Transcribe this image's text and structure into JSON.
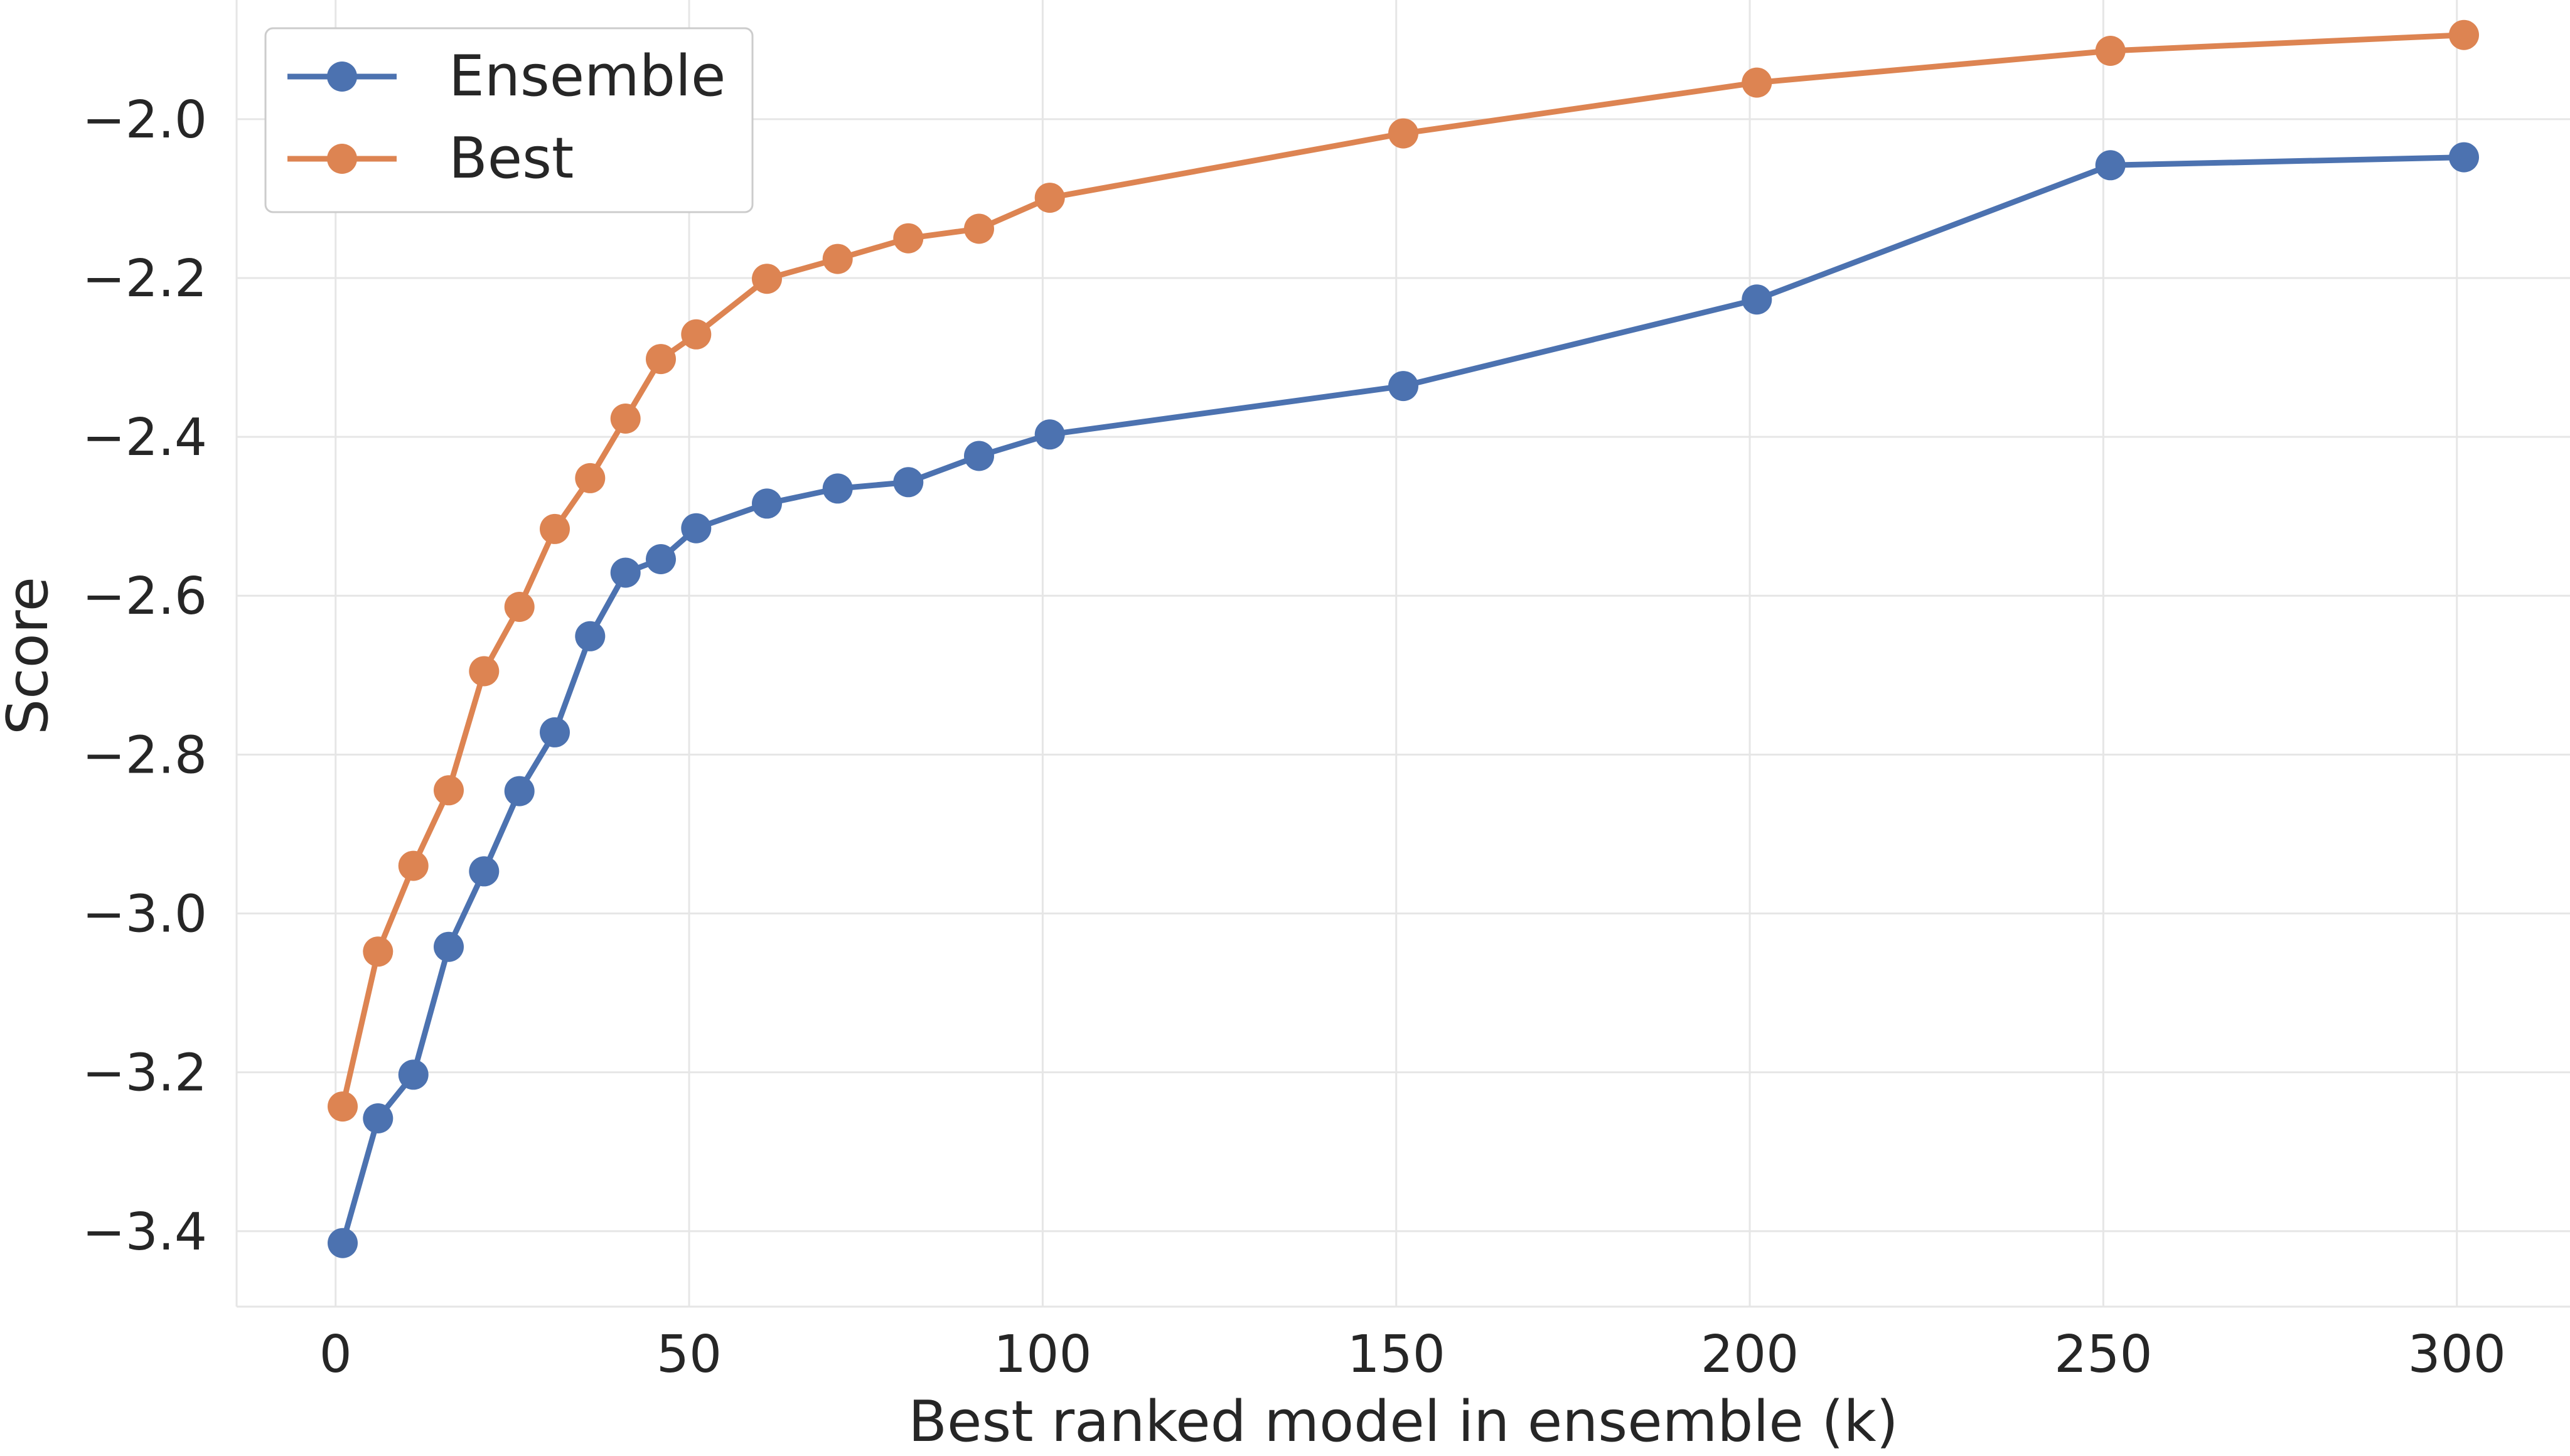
{
  "chart_data": {
    "type": "line",
    "title": "",
    "xlabel": "Best ranked model in ensemble (k)",
    "ylabel": "Score",
    "xlim": [
      -14,
      316
    ],
    "ylim": [
      -3.495,
      -1.85
    ],
    "x_ticks": [
      0,
      50,
      100,
      150,
      200,
      250,
      300
    ],
    "x_tick_labels": [
      "0",
      "50",
      "100",
      "150",
      "200",
      "250",
      "300"
    ],
    "y_ticks": [
      -3.4,
      -3.2,
      -3.0,
      -2.8,
      -2.6,
      -2.4,
      -2.2,
      -2.0
    ],
    "y_tick_labels": [
      "−3.4",
      "−3.2",
      "−3.0",
      "−2.8",
      "−2.6",
      "−2.4",
      "−2.2",
      "−2.0"
    ],
    "grid": true,
    "legend_position": "top-left",
    "x": [
      1,
      6,
      11,
      16,
      21,
      26,
      31,
      36,
      41,
      46,
      51,
      61,
      71,
      81,
      91,
      101,
      151,
      201,
      251,
      301
    ],
    "series": [
      {
        "name": "Ensemble",
        "color": "#4c72b0",
        "values": [
          -3.415,
          -3.258,
          -3.203,
          -3.042,
          -2.947,
          -2.846,
          -2.772,
          -2.651,
          -2.571,
          -2.554,
          -2.515,
          -2.484,
          -2.465,
          -2.457,
          -2.424,
          -2.397,
          -2.336,
          -2.227,
          -2.058,
          -2.048
        ]
      },
      {
        "name": "Best",
        "color": "#dd8452",
        "values": [
          -3.243,
          -3.048,
          -2.94,
          -2.845,
          -2.695,
          -2.614,
          -2.516,
          -2.452,
          -2.377,
          -2.302,
          -2.271,
          -2.201,
          -2.176,
          -2.15,
          -2.138,
          -2.099,
          -2.018,
          -1.954,
          -1.914,
          -1.894
        ]
      }
    ]
  }
}
